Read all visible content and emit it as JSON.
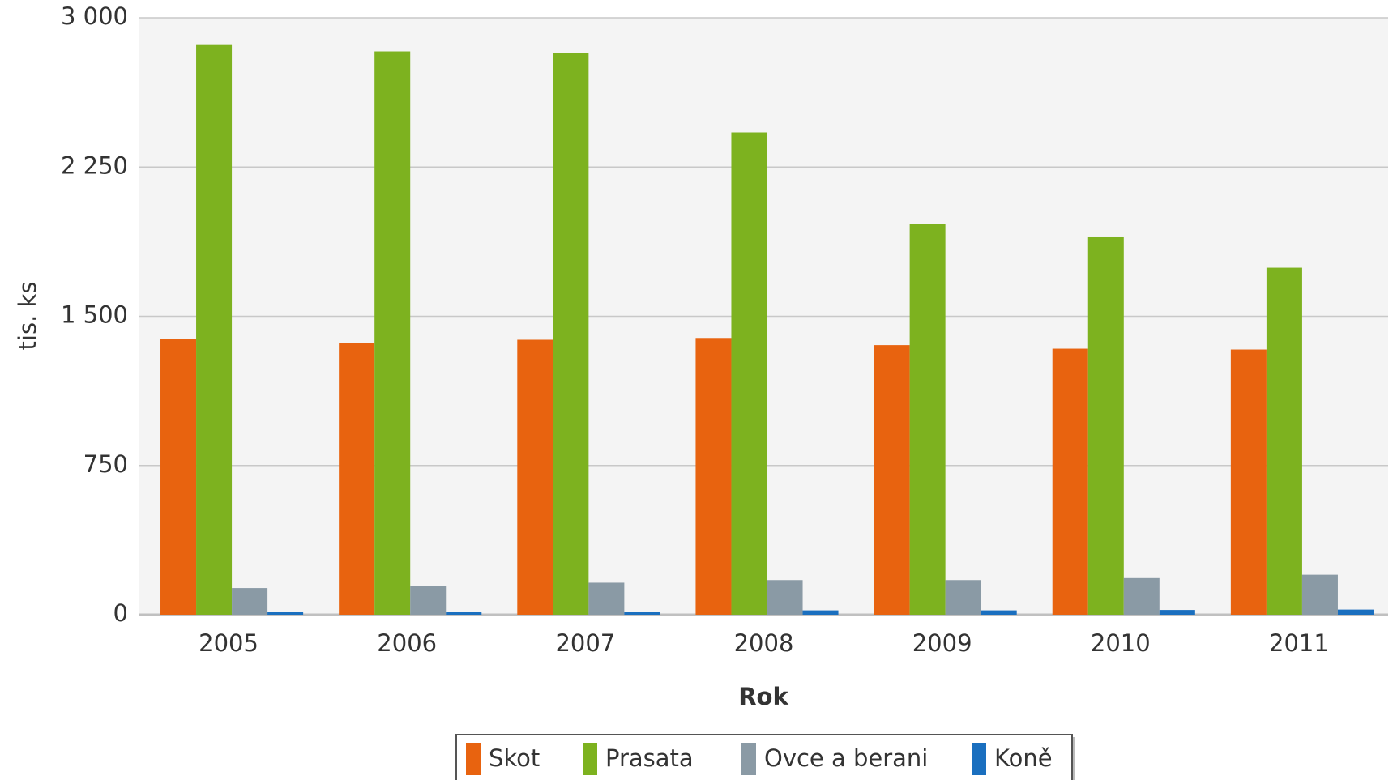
{
  "chart_data": {
    "type": "bar",
    "x_label": "Rok",
    "y_label": "tis. ks",
    "categories": [
      "2005",
      "2006",
      "2007",
      "2008",
      "2009",
      "2010",
      "2011"
    ],
    "series": [
      {
        "name": "Skot",
        "color": "#e8630f",
        "values": [
          1387,
          1364,
          1382,
          1391,
          1355,
          1337,
          1333
        ]
      },
      {
        "name": "Prasata",
        "color": "#7db21f",
        "values": [
          2867,
          2831,
          2822,
          2424,
          1964,
          1901,
          1744
        ]
      },
      {
        "name": "Ovce a berani",
        "color": "#8a9aa5",
        "values": [
          134,
          143,
          161,
          174,
          174,
          188,
          201
        ]
      },
      {
        "name": "Koně",
        "color": "#1a6fbf",
        "values": [
          13,
          14,
          14,
          22,
          22,
          24,
          26
        ]
      }
    ],
    "ylim": [
      0,
      3000
    ],
    "yticks": [
      0,
      750,
      {
        "value": 1500,
        "label": "1 500"
      },
      {
        "value": 2250,
        "label": "2 250"
      },
      {
        "value": 3000,
        "label": "3 000"
      }
    ],
    "grid": true,
    "legend": "bottom"
  }
}
